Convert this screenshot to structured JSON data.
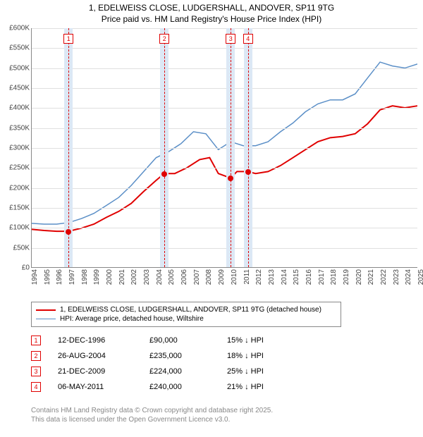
{
  "title_line1": "1, EDELWEISS CLOSE, LUDGERSHALL, ANDOVER, SP11 9TG",
  "title_line2": "Price paid vs. HM Land Registry's House Price Index (HPI)",
  "chart": {
    "type": "line",
    "background_color": "#ffffff",
    "grid_color": "#e0e0e0",
    "axis_color": "#888888",
    "label_fontsize": 10,
    "x_years": [
      1994,
      1995,
      1996,
      1997,
      1998,
      1999,
      2000,
      2001,
      2002,
      2003,
      2004,
      2005,
      2006,
      2007,
      2008,
      2009,
      2010,
      2011,
      2012,
      2013,
      2014,
      2015,
      2016,
      2017,
      2018,
      2019,
      2020,
      2021,
      2022,
      2023,
      2024,
      2025
    ],
    "ylim": [
      0,
      600000
    ],
    "ytick_step": 50000,
    "yticks": [
      "£0",
      "£50K",
      "£100K",
      "£150K",
      "£200K",
      "£250K",
      "£300K",
      "£350K",
      "£400K",
      "£450K",
      "£500K",
      "£550K",
      "£600K"
    ],
    "series": {
      "property": {
        "color": "#e00000",
        "width": 2,
        "points": [
          [
            1994.0,
            95000
          ],
          [
            1995.0,
            92000
          ],
          [
            1996.0,
            90000
          ],
          [
            1996.96,
            90000
          ],
          [
            1998.0,
            98000
          ],
          [
            1999.0,
            108000
          ],
          [
            2000.0,
            125000
          ],
          [
            2001.0,
            140000
          ],
          [
            2002.0,
            160000
          ],
          [
            2003.0,
            190000
          ],
          [
            2004.0,
            218000
          ],
          [
            2004.65,
            235000
          ],
          [
            2005.5,
            235000
          ],
          [
            2006.5,
            250000
          ],
          [
            2007.5,
            270000
          ],
          [
            2008.3,
            275000
          ],
          [
            2009.0,
            235000
          ],
          [
            2009.97,
            224000
          ],
          [
            2010.5,
            240000
          ],
          [
            2011.35,
            240000
          ],
          [
            2012.0,
            235000
          ],
          [
            2013.0,
            240000
          ],
          [
            2014.0,
            255000
          ],
          [
            2015.0,
            275000
          ],
          [
            2016.0,
            295000
          ],
          [
            2017.0,
            315000
          ],
          [
            2018.0,
            325000
          ],
          [
            2019.0,
            328000
          ],
          [
            2020.0,
            335000
          ],
          [
            2021.0,
            360000
          ],
          [
            2022.0,
            395000
          ],
          [
            2023.0,
            405000
          ],
          [
            2024.0,
            400000
          ],
          [
            2025.0,
            405000
          ]
        ]
      },
      "hpi": {
        "color": "#5b8fc7",
        "width": 1.5,
        "points": [
          [
            1994.0,
            110000
          ],
          [
            1995.0,
            108000
          ],
          [
            1996.0,
            108000
          ],
          [
            1997.0,
            112000
          ],
          [
            1998.0,
            122000
          ],
          [
            1999.0,
            135000
          ],
          [
            2000.0,
            155000
          ],
          [
            2001.0,
            175000
          ],
          [
            2002.0,
            205000
          ],
          [
            2003.0,
            240000
          ],
          [
            2004.0,
            275000
          ],
          [
            2005.0,
            290000
          ],
          [
            2006.0,
            310000
          ],
          [
            2007.0,
            340000
          ],
          [
            2008.0,
            335000
          ],
          [
            2009.0,
            295000
          ],
          [
            2010.0,
            315000
          ],
          [
            2011.0,
            305000
          ],
          [
            2012.0,
            305000
          ],
          [
            2013.0,
            315000
          ],
          [
            2014.0,
            340000
          ],
          [
            2015.0,
            362000
          ],
          [
            2016.0,
            390000
          ],
          [
            2017.0,
            410000
          ],
          [
            2018.0,
            420000
          ],
          [
            2019.0,
            420000
          ],
          [
            2020.0,
            435000
          ],
          [
            2021.0,
            475000
          ],
          [
            2022.0,
            515000
          ],
          [
            2023.0,
            505000
          ],
          [
            2024.0,
            500000
          ],
          [
            2025.0,
            510000
          ]
        ]
      }
    },
    "sale_band_color": "#dce8f5",
    "sale_marker_border": "#e00000",
    "sales": [
      {
        "n": "1",
        "year": 1996.96,
        "price": 90000
      },
      {
        "n": "2",
        "year": 2004.65,
        "price": 235000
      },
      {
        "n": "3",
        "year": 2009.97,
        "price": 224000
      },
      {
        "n": "4",
        "year": 2011.35,
        "price": 240000
      }
    ]
  },
  "legend": {
    "border_color": "#888888",
    "items": [
      {
        "color": "#e00000",
        "width": 2,
        "label": "1, EDELWEISS CLOSE, LUDGERSHALL, ANDOVER, SP11 9TG (detached house)"
      },
      {
        "color": "#5b8fc7",
        "width": 1.5,
        "label": "HPI: Average price, detached house, Wiltshire"
      }
    ]
  },
  "sales_table": [
    {
      "n": "1",
      "date": "12-DEC-1996",
      "price": "£90,000",
      "delta": "15% ↓ HPI"
    },
    {
      "n": "2",
      "date": "26-AUG-2004",
      "price": "£235,000",
      "delta": "18% ↓ HPI"
    },
    {
      "n": "3",
      "date": "21-DEC-2009",
      "price": "£224,000",
      "delta": "25% ↓ HPI"
    },
    {
      "n": "4",
      "date": "06-MAY-2011",
      "price": "£240,000",
      "delta": "21% ↓ HPI"
    }
  ],
  "footer_line1": "Contains HM Land Registry data © Crown copyright and database right 2025.",
  "footer_line2": "This data is licensed under the Open Government Licence v3.0."
}
